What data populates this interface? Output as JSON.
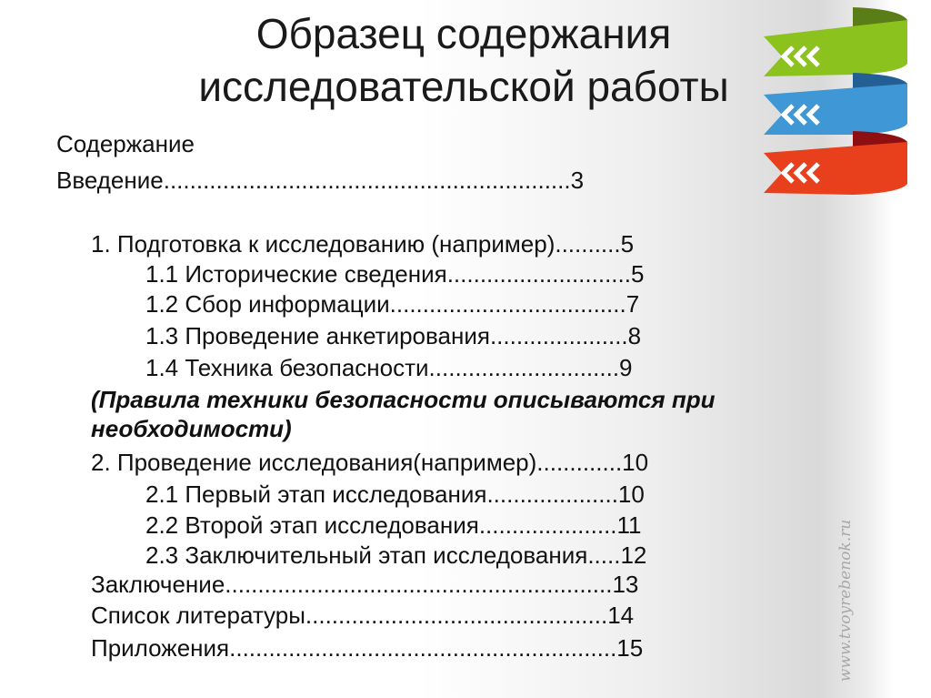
{
  "title": {
    "line1": "Образец содержания",
    "line2": "исследовательской работы"
  },
  "toc": {
    "heading": "Содержание",
    "intro": "Введение..............................................................3",
    "items": [
      "1. Подготовка к исследованию (например)..........5",
      "1.1 Исторические сведения............................5",
      "1.2 Сбор информации....................................7",
      "1.3 Проведение анкетирования.....................8",
      "1.4 Техника безопасности.............................9",
      "(Правила техники безопасности описываются при",
      "необходимости)",
      "2. Проведение исследования(например).............10",
      "2.1 Первый этап исследования....................10",
      "2.2 Второй этап исследования.....................11",
      "2.3 Заключительный этап исследования.....12",
      "Заключение...........................................................13",
      "Список литературы..............................................14",
      "Приложения...........................................................15"
    ]
  },
  "watermark": "www.tvoyrebenok.ru",
  "colors": {
    "green": "#8cc21e",
    "blue": "#3f97d6",
    "red": "#e8401c"
  }
}
